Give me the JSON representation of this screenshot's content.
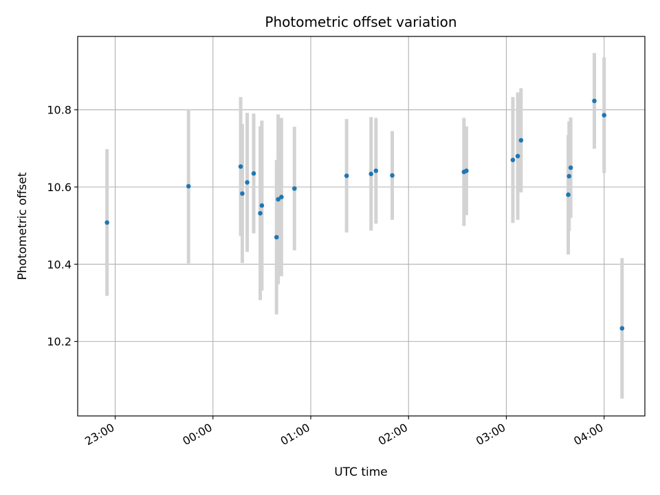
{
  "chart_data": {
    "type": "scatter",
    "title": "Photometric offset variation",
    "xlabel": "UTC time",
    "ylabel": "Photometric offset",
    "x_unit": "minutes",
    "x_origin_label": "00:00",
    "xlim": [
      -83,
      265
    ],
    "ylim": [
      10.007,
      10.99
    ],
    "xticks": [
      {
        "value": -60,
        "label": "23:00"
      },
      {
        "value": 0,
        "label": "00:00"
      },
      {
        "value": 60,
        "label": "01:00"
      },
      {
        "value": 120,
        "label": "02:00"
      },
      {
        "value": 180,
        "label": "03:00"
      },
      {
        "value": 240,
        "label": "04:00"
      }
    ],
    "yticks": [
      {
        "value": 10.2,
        "label": "10.2"
      },
      {
        "value": 10.4,
        "label": "10.4"
      },
      {
        "value": 10.6,
        "label": "10.6"
      },
      {
        "value": 10.8,
        "label": "10.8"
      }
    ],
    "grid": true,
    "point_color": "#1f77b4",
    "errorbar_color": "#d3d3d3",
    "points": [
      {
        "x": -65.0,
        "y": 10.508,
        "yerr": 0.19
      },
      {
        "x": -15.0,
        "y": 10.602,
        "yerr": 0.2
      },
      {
        "x": 17.0,
        "y": 10.653,
        "yerr": 0.18
      },
      {
        "x": 18.0,
        "y": 10.583,
        "yerr": 0.18
      },
      {
        "x": 21.0,
        "y": 10.612,
        "yerr": 0.18
      },
      {
        "x": 25.0,
        "y": 10.635,
        "yerr": 0.155
      },
      {
        "x": 29.0,
        "y": 10.532,
        "yerr": 0.225
      },
      {
        "x": 30.0,
        "y": 10.552,
        "yerr": 0.22
      },
      {
        "x": 39.0,
        "y": 10.47,
        "yerr": 0.2
      },
      {
        "x": 40.0,
        "y": 10.568,
        "yerr": 0.22
      },
      {
        "x": 42.0,
        "y": 10.574,
        "yerr": 0.205
      },
      {
        "x": 50.0,
        "y": 10.596,
        "yerr": 0.16
      },
      {
        "x": 82.0,
        "y": 10.629,
        "yerr": 0.147
      },
      {
        "x": 97.0,
        "y": 10.634,
        "yerr": 0.147
      },
      {
        "x": 100.0,
        "y": 10.642,
        "yerr": 0.137
      },
      {
        "x": 110.0,
        "y": 10.63,
        "yerr": 0.115
      },
      {
        "x": 154.0,
        "y": 10.639,
        "yerr": 0.14
      },
      {
        "x": 155.5,
        "y": 10.642,
        "yerr": 0.115
      },
      {
        "x": 184.0,
        "y": 10.67,
        "yerr": 0.163
      },
      {
        "x": 187.0,
        "y": 10.68,
        "yerr": 0.165
      },
      {
        "x": 189.0,
        "y": 10.721,
        "yerr": 0.135
      },
      {
        "x": 218.0,
        "y": 10.58,
        "yerr": 0.155
      },
      {
        "x": 218.5,
        "y": 10.628,
        "yerr": 0.142
      },
      {
        "x": 219.5,
        "y": 10.65,
        "yerr": 0.13
      },
      {
        "x": 234.0,
        "y": 10.823,
        "yerr": 0.124
      },
      {
        "x": 240.0,
        "y": 10.786,
        "yerr": 0.15
      },
      {
        "x": 251.0,
        "y": 10.234,
        "yerr": 0.182
      }
    ]
  }
}
